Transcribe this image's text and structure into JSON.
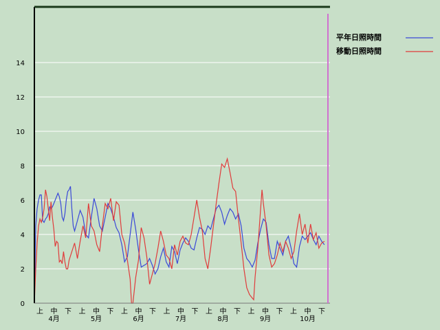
{
  "chart_data": {
    "type": "line",
    "title": "",
    "xlabel": "",
    "ylabel": "",
    "ylim": [
      0,
      16
    ],
    "yticks": [
      0,
      2,
      4,
      6,
      8,
      10,
      12,
      14
    ],
    "grid": true,
    "legend_position": "top-right",
    "x_periods": [
      "上",
      "中",
      "下"
    ],
    "months": [
      "4月",
      "5月",
      "6月",
      "7月",
      "8月",
      "9月",
      "10月"
    ],
    "period_tick_labels": [
      "上",
      "中",
      "下",
      "上",
      "中",
      "下",
      "上",
      "中",
      "下",
      "上",
      "中",
      "下",
      "上",
      "中",
      "下",
      "上",
      "中",
      "下",
      "上",
      "中",
      "下"
    ],
    "month_labels": [
      "4月",
      "5月",
      "6月",
      "7月",
      "8月",
      "9月",
      "10月"
    ],
    "x_range_days": [
      1,
      214
    ],
    "series": [
      {
        "name": "平年日照時間",
        "color": "#3a48d8",
        "points": [
          [
            1,
            0
          ],
          [
            2,
            4.5
          ],
          [
            3,
            5.5
          ],
          [
            4,
            6.0
          ],
          [
            5,
            6.3
          ],
          [
            6,
            6.3
          ],
          [
            7,
            4.8
          ],
          [
            8,
            4.7
          ],
          [
            9,
            4.9
          ],
          [
            10,
            5.0
          ],
          [
            11,
            5.2
          ],
          [
            12,
            5.6
          ],
          [
            13,
            5.5
          ],
          [
            14,
            5.6
          ],
          [
            15,
            5.8
          ],
          [
            16,
            6.0
          ],
          [
            17,
            6.2
          ],
          [
            18,
            6.4
          ],
          [
            19,
            6.2
          ],
          [
            20,
            5.8
          ],
          [
            21,
            5.0
          ],
          [
            22,
            4.8
          ],
          [
            23,
            5.2
          ],
          [
            24,
            6.0
          ],
          [
            25,
            6.5
          ],
          [
            26,
            6.6
          ],
          [
            27,
            6.8
          ],
          [
            28,
            5.5
          ],
          [
            29,
            4.5
          ],
          [
            30,
            4.2
          ],
          [
            32,
            4.8
          ],
          [
            34,
            5.4
          ],
          [
            36,
            5.0
          ],
          [
            38,
            4.0
          ],
          [
            40,
            3.8
          ],
          [
            42,
            5.0
          ],
          [
            44,
            6.1
          ],
          [
            46,
            5.5
          ],
          [
            48,
            4.5
          ],
          [
            50,
            4.2
          ],
          [
            52,
            5.0
          ],
          [
            54,
            5.8
          ],
          [
            56,
            5.5
          ],
          [
            58,
            5.0
          ],
          [
            60,
            4.4
          ],
          [
            62,
            4.1
          ],
          [
            64,
            3.4
          ],
          [
            66,
            2.4
          ],
          [
            68,
            2.7
          ],
          [
            70,
            4.0
          ],
          [
            72,
            5.3
          ],
          [
            74,
            4.3
          ],
          [
            76,
            3.1
          ],
          [
            78,
            2.1
          ],
          [
            80,
            2.2
          ],
          [
            82,
            2.3
          ],
          [
            84,
            2.6
          ],
          [
            86,
            2.2
          ],
          [
            88,
            1.7
          ],
          [
            90,
            2.0
          ],
          [
            92,
            2.7
          ],
          [
            94,
            3.2
          ],
          [
            96,
            2.4
          ],
          [
            98,
            2.1
          ],
          [
            100,
            3.3
          ],
          [
            102,
            3.0
          ],
          [
            104,
            2.3
          ],
          [
            106,
            3.1
          ],
          [
            108,
            3.5
          ],
          [
            110,
            3.8
          ],
          [
            112,
            3.6
          ],
          [
            114,
            3.2
          ],
          [
            116,
            3.1
          ],
          [
            118,
            3.8
          ],
          [
            120,
            4.4
          ],
          [
            122,
            4.3
          ],
          [
            124,
            4.0
          ],
          [
            126,
            4.5
          ],
          [
            128,
            4.3
          ],
          [
            130,
            4.9
          ],
          [
            132,
            5.5
          ],
          [
            134,
            5.7
          ],
          [
            136,
            5.3
          ],
          [
            138,
            4.6
          ],
          [
            140,
            5.1
          ],
          [
            142,
            5.5
          ],
          [
            144,
            5.3
          ],
          [
            146,
            4.9
          ],
          [
            148,
            5.2
          ],
          [
            150,
            4.5
          ],
          [
            152,
            3.2
          ],
          [
            154,
            2.6
          ],
          [
            156,
            2.4
          ],
          [
            158,
            2.1
          ],
          [
            160,
            2.5
          ],
          [
            162,
            3.5
          ],
          [
            164,
            4.3
          ],
          [
            166,
            4.9
          ],
          [
            168,
            4.7
          ],
          [
            170,
            3.4
          ],
          [
            172,
            2.6
          ],
          [
            174,
            2.6
          ],
          [
            176,
            3.6
          ],
          [
            178,
            3.2
          ],
          [
            180,
            2.8
          ],
          [
            182,
            3.6
          ],
          [
            184,
            3.9
          ],
          [
            186,
            3.2
          ],
          [
            188,
            2.3
          ],
          [
            190,
            2.1
          ],
          [
            192,
            3.3
          ],
          [
            194,
            3.9
          ],
          [
            196,
            3.7
          ],
          [
            198,
            3.9
          ],
          [
            200,
            4.1
          ],
          [
            202,
            3.7
          ],
          [
            204,
            3.4
          ],
          [
            206,
            3.9
          ],
          [
            208,
            3.6
          ],
          [
            210,
            3.4
          ]
        ]
      },
      {
        "name": "移動日照時間",
        "color": "#e03a3a",
        "points": [
          [
            1,
            0
          ],
          [
            2,
            2.0
          ],
          [
            3,
            3.5
          ],
          [
            4,
            4.5
          ],
          [
            5,
            4.9
          ],
          [
            6,
            4.7
          ],
          [
            7,
            5.0
          ],
          [
            8,
            5.5
          ],
          [
            9,
            6.6
          ],
          [
            10,
            6.2
          ],
          [
            11,
            5.5
          ],
          [
            12,
            4.8
          ],
          [
            13,
            5.9
          ],
          [
            14,
            5.0
          ],
          [
            15,
            4.3
          ],
          [
            16,
            3.3
          ],
          [
            17,
            3.6
          ],
          [
            18,
            3.5
          ],
          [
            19,
            2.4
          ],
          [
            20,
            2.5
          ],
          [
            21,
            2.3
          ],
          [
            22,
            3.0
          ],
          [
            23,
            2.4
          ],
          [
            24,
            2.0
          ],
          [
            25,
            2.0
          ],
          [
            26,
            2.5
          ],
          [
            28,
            3.0
          ],
          [
            30,
            3.5
          ],
          [
            32,
            2.6
          ],
          [
            34,
            3.6
          ],
          [
            36,
            4.5
          ],
          [
            38,
            3.8
          ],
          [
            40,
            5.8
          ],
          [
            42,
            4.5
          ],
          [
            44,
            4.2
          ],
          [
            46,
            3.4
          ],
          [
            48,
            3.0
          ],
          [
            50,
            4.5
          ],
          [
            52,
            5.8
          ],
          [
            54,
            5.5
          ],
          [
            56,
            6.1
          ],
          [
            58,
            4.8
          ],
          [
            60,
            5.9
          ],
          [
            62,
            5.7
          ],
          [
            64,
            4.0
          ],
          [
            66,
            3.5
          ],
          [
            68,
            2.5
          ],
          [
            70,
            1.4
          ],
          [
            71,
            0
          ],
          [
            72,
            0
          ],
          [
            74,
            1.5
          ],
          [
            76,
            2.5
          ],
          [
            78,
            4.4
          ],
          [
            80,
            3.8
          ],
          [
            82,
            2.7
          ],
          [
            84,
            1.1
          ],
          [
            86,
            1.7
          ],
          [
            88,
            2.3
          ],
          [
            90,
            3.2
          ],
          [
            92,
            4.2
          ],
          [
            94,
            3.6
          ],
          [
            96,
            2.8
          ],
          [
            98,
            2.6
          ],
          [
            100,
            2.0
          ],
          [
            102,
            3.4
          ],
          [
            104,
            2.8
          ],
          [
            106,
            3.6
          ],
          [
            108,
            3.9
          ],
          [
            110,
            3.5
          ],
          [
            112,
            3.4
          ],
          [
            114,
            4.0
          ],
          [
            116,
            5.0
          ],
          [
            118,
            6.0
          ],
          [
            120,
            5.0
          ],
          [
            122,
            4.2
          ],
          [
            124,
            2.6
          ],
          [
            126,
            2.0
          ],
          [
            128,
            3.2
          ],
          [
            130,
            4.5
          ],
          [
            132,
            5.8
          ],
          [
            134,
            7.0
          ],
          [
            136,
            8.1
          ],
          [
            138,
            7.9
          ],
          [
            140,
            8.4
          ],
          [
            142,
            7.6
          ],
          [
            144,
            6.7
          ],
          [
            146,
            6.5
          ],
          [
            148,
            4.9
          ],
          [
            150,
            3.5
          ],
          [
            152,
            2.0
          ],
          [
            154,
            0.9
          ],
          [
            156,
            0.5
          ],
          [
            158,
            0.3
          ],
          [
            159,
            0.2
          ],
          [
            160,
            1.5
          ],
          [
            162,
            3.2
          ],
          [
            164,
            5.5
          ],
          [
            165,
            6.6
          ],
          [
            166,
            5.8
          ],
          [
            168,
            4.5
          ],
          [
            170,
            2.8
          ],
          [
            172,
            2.1
          ],
          [
            174,
            2.3
          ],
          [
            176,
            2.8
          ],
          [
            178,
            3.5
          ],
          [
            180,
            3.0
          ],
          [
            182,
            3.6
          ],
          [
            184,
            3.2
          ],
          [
            186,
            2.6
          ],
          [
            188,
            3.0
          ],
          [
            190,
            4.2
          ],
          [
            192,
            5.2
          ],
          [
            194,
            4.0
          ],
          [
            196,
            4.6
          ],
          [
            198,
            3.5
          ],
          [
            200,
            4.6
          ],
          [
            202,
            3.7
          ],
          [
            204,
            4.1
          ],
          [
            206,
            3.2
          ],
          [
            208,
            3.5
          ],
          [
            210,
            3.6
          ]
        ]
      }
    ]
  }
}
